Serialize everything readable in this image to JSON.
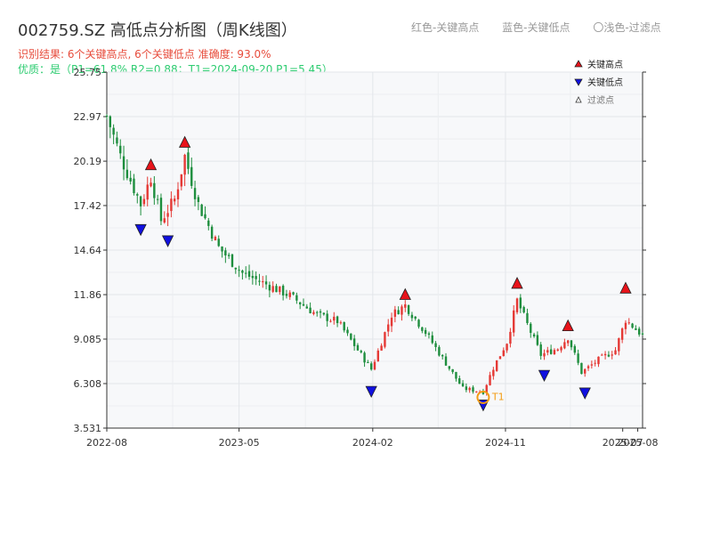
{
  "header": {
    "title": "002759.SZ 高低点分析图（周K线图）",
    "result_line": "识别结果: 6个关键高点, 6个关键低点   准确度: 93.0%",
    "quality_line": "优质：是（P1=61.8%  R2=0.88；T1=2024-09-20 P1=5.45）"
  },
  "top_legend": {
    "red": "红色-关键高点",
    "blue": "蓝色-关键低点",
    "light": "〇浅色-过滤点"
  },
  "colors": {
    "up": "#e53935",
    "down": "#1e8e3e",
    "high_marker": "#e8131a",
    "low_marker": "#1010e0",
    "t1_marker": "#f39c12",
    "plot_bg": "#f7f8fa",
    "grid": "#e3e6ea"
  },
  "chart_data": {
    "type": "candlestick",
    "title": "002759.SZ 高低点分析图（周K线图）",
    "yticks": [
      "3.531",
      "6.308",
      "9.085",
      "11.86",
      "14.64",
      "17.42",
      "20.19",
      "22.97",
      "25.75"
    ],
    "ylim": [
      3.531,
      25.75
    ],
    "xticks": [
      "2022-08",
      "2023-05",
      "2024-02",
      "2024-11",
      "2025-07",
      "2025-08"
    ],
    "xlim": [
      "2022-08-01",
      "2025-08-11"
    ],
    "legend": {
      "placement": "top-right",
      "items": [
        {
          "label": "关键高点",
          "marker": "triangle-up",
          "color": "#e8131a"
        },
        {
          "label": "关键低点",
          "marker": "triangle-down",
          "color": "#1010e0"
        },
        {
          "label": "过滤点",
          "marker": "triangle-up-hollow",
          "color": "#999999"
        }
      ]
    },
    "anchor_path": [
      [
        "2022-08-01",
        23.0
      ],
      [
        "2022-08-29",
        20.5
      ],
      [
        "2022-10-10",
        17.5
      ],
      [
        "2022-10-31",
        19.2
      ],
      [
        "2022-11-21",
        16.5
      ],
      [
        "2022-12-19",
        17.8
      ],
      [
        "2023-01-09",
        20.5
      ],
      [
        "2023-02-06",
        17.5
      ],
      [
        "2023-03-20",
        14.8
      ],
      [
        "2023-05-08",
        13.2
      ],
      [
        "2023-06-26",
        12.5
      ],
      [
        "2023-08-14",
        11.8
      ],
      [
        "2023-10-09",
        10.6
      ],
      [
        "2023-11-20",
        10.2
      ],
      [
        "2024-01-29",
        7.2
      ],
      [
        "2024-03-11",
        10.6
      ],
      [
        "2024-04-08",
        11.2
      ],
      [
        "2024-05-20",
        9.5
      ],
      [
        "2024-06-24",
        7.9
      ],
      [
        "2024-08-05",
        6.0
      ],
      [
        "2024-09-16",
        5.8
      ],
      [
        "2024-10-07",
        7.3
      ],
      [
        "2024-11-04",
        8.9
      ],
      [
        "2024-11-25",
        11.5
      ],
      [
        "2024-12-16",
        10.0
      ],
      [
        "2025-01-13",
        8.1
      ],
      [
        "2025-02-17",
        8.5
      ],
      [
        "2025-03-10",
        9.2
      ],
      [
        "2025-04-07",
        7.0
      ],
      [
        "2025-05-12",
        7.8
      ],
      [
        "2025-06-16",
        8.4
      ],
      [
        "2025-07-07",
        10.3
      ],
      [
        "2025-08-11",
        9.3
      ]
    ],
    "key_highs": [
      {
        "date": "2022-10-31",
        "price": 19.6
      },
      {
        "date": "2023-01-09",
        "price": 21.0
      },
      {
        "date": "2024-04-08",
        "price": 11.5
      },
      {
        "date": "2024-11-25",
        "price": 12.2
      },
      {
        "date": "2025-03-10",
        "price": 9.55
      },
      {
        "date": "2025-07-07",
        "price": 11.9
      }
    ],
    "key_lows": [
      {
        "date": "2022-10-10",
        "price": 16.4
      },
      {
        "date": "2022-12-05",
        "price": 15.7
      },
      {
        "date": "2024-01-29",
        "price": 6.3
      },
      {
        "date": "2024-09-16",
        "price": 5.45
      },
      {
        "date": "2025-01-20",
        "price": 7.3
      },
      {
        "date": "2025-04-14",
        "price": 6.2
      }
    ],
    "t1": {
      "date": "2024-09-16",
      "price": 5.45,
      "label": "T1"
    }
  }
}
